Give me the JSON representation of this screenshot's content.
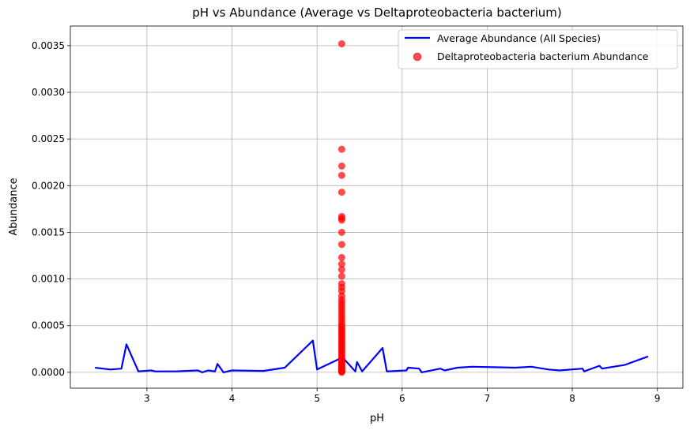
{
  "chart_data": {
    "type": "line+scatter",
    "title": "pH vs Abundance (Average vs Deltaproteobacteria bacterium)",
    "xlabel": "pH",
    "ylabel": "Abundance",
    "xlim": [
      2.1,
      9.3
    ],
    "ylim": [
      -0.00017,
      0.00371
    ],
    "xticks": [
      3,
      4,
      5,
      6,
      7,
      8,
      9
    ],
    "xtick_labels": [
      "3",
      "4",
      "5",
      "6",
      "7",
      "8",
      "9"
    ],
    "yticks": [
      0.0,
      0.0005,
      0.001,
      0.0015,
      0.002,
      0.0025,
      0.003,
      0.0035
    ],
    "ytick_labels": [
      "0.0000",
      "0.0005",
      "0.0010",
      "0.0015",
      "0.0020",
      "0.0025",
      "0.0030",
      "0.0035"
    ],
    "grid": true,
    "legend_position": "top-right",
    "series": [
      {
        "name": "Average Abundance (All Species)",
        "type": "line",
        "color": "#0000ff",
        "x": [
          2.39,
          2.57,
          2.7,
          2.76,
          2.9,
          3.05,
          3.1,
          3.2,
          3.35,
          3.45,
          3.6,
          3.65,
          3.72,
          3.8,
          3.83,
          3.9,
          4.0,
          4.37,
          4.62,
          4.95,
          5.0,
          5.3,
          5.45,
          5.47,
          5.53,
          5.77,
          5.82,
          6.05,
          6.07,
          6.2,
          6.23,
          6.45,
          6.5,
          6.65,
          6.82,
          7.33,
          7.52,
          7.72,
          7.85,
          8.12,
          8.14,
          8.32,
          8.35,
          8.62,
          8.89
        ],
        "y": [
          5e-05,
          3e-05,
          4e-05,
          0.0003,
          1e-05,
          2e-05,
          1e-05,
          1e-05,
          1e-05,
          1.5e-05,
          2e-05,
          0.0,
          2e-05,
          1e-05,
          9e-05,
          0.0,
          2e-05,
          1.5e-05,
          5e-05,
          0.00034,
          3e-05,
          0.00016,
          1e-05,
          0.00011,
          1e-05,
          0.00026,
          1e-05,
          2e-05,
          5e-05,
          4e-05,
          0.0,
          4e-05,
          2e-05,
          5e-05,
          6e-05,
          5e-05,
          6e-05,
          3e-05,
          2e-05,
          4e-05,
          1e-05,
          7e-05,
          4e-05,
          8e-05,
          0.00017
        ]
      },
      {
        "name": "Deltaproteobacteria bacterium Abundance",
        "type": "scatter",
        "color": "#ff0000",
        "x": [
          5.29,
          5.29,
          5.29,
          5.29,
          5.29,
          5.29,
          5.29,
          5.29,
          5.29,
          5.29,
          5.29,
          5.29,
          5.29,
          5.29,
          5.29,
          5.29,
          5.29,
          5.29,
          5.29,
          5.29,
          5.29,
          5.29,
          5.29,
          5.29,
          5.29,
          5.29,
          5.29,
          5.29,
          5.29,
          5.29,
          5.29,
          5.29,
          5.29,
          5.29,
          5.29,
          5.29,
          5.29,
          5.29,
          5.29,
          5.29,
          5.29,
          5.29,
          5.29,
          5.29,
          5.29,
          5.29,
          5.29,
          5.29,
          5.29,
          5.29,
          5.29,
          5.29,
          5.29,
          5.29,
          5.29,
          5.29,
          5.29,
          5.29,
          5.29,
          5.29
        ],
        "y": [
          0.00352,
          0.00239,
          0.00221,
          0.00211,
          0.00193,
          0.00167,
          0.00165,
          0.00163,
          0.0015,
          0.00137,
          0.00123,
          0.00116,
          0.0011,
          0.00103,
          0.00095,
          0.00091,
          0.00087,
          0.00082,
          0.00078,
          0.00075,
          0.00072,
          0.00069,
          0.00066,
          0.00063,
          0.0006,
          0.00057,
          0.00054,
          0.00051,
          0.00049,
          0.00047,
          0.00045,
          0.00043,
          0.00041,
          0.00039,
          0.00037,
          0.00035,
          0.00033,
          0.00031,
          0.00029,
          0.00027,
          0.00025,
          0.00023,
          0.00021,
          0.00019,
          0.00017,
          0.00015,
          0.00013,
          0.00011,
          0.0001,
          9e-05,
          8e-05,
          7e-05,
          6e-05,
          5e-05,
          4e-05,
          3e-05,
          2e-05,
          1.5e-05,
          1e-05,
          0.0
        ]
      }
    ]
  }
}
